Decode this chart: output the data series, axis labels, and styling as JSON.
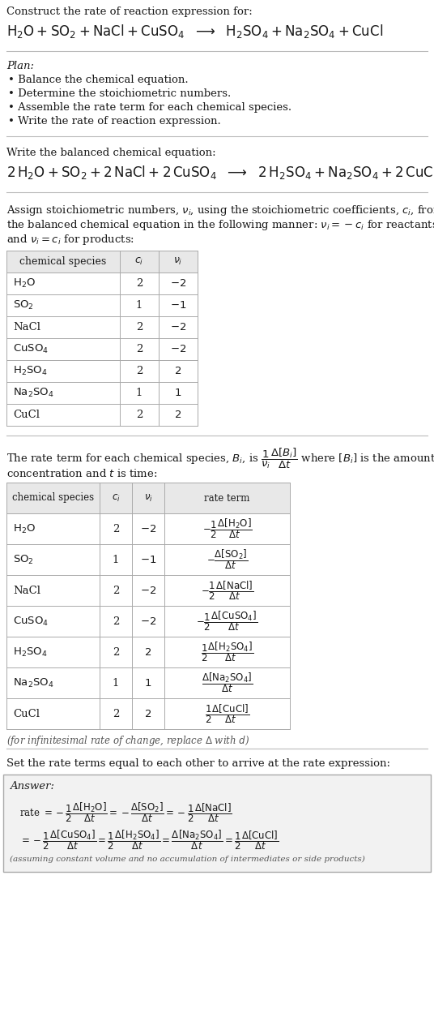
{
  "bg_color": "#ffffff",
  "text_color": "#1a1a1a",
  "title_line1": "Construct the rate of reaction expression for:",
  "plan_header": "Plan:",
  "plan_items": [
    "• Balance the chemical equation.",
    "• Determine the stoichiometric numbers.",
    "• Assemble the rate term for each chemical species.",
    "• Write the rate of reaction expression."
  ],
  "balanced_header": "Write the balanced chemical equation:",
  "stoich_lines": [
    "Assign stoichiometric numbers, $\\nu_i$, using the stoichiometric coefficients, $c_i$, from",
    "the balanced chemical equation in the following manner: $\\nu_i = -c_i$ for reactants",
    "and $\\nu_i = c_i$ for products:"
  ],
  "table1_species": [
    "$\\mathrm{H_2O}$",
    "$\\mathrm{SO_2}$",
    "NaCl",
    "$\\mathrm{CuSO_4}$",
    "$\\mathrm{H_2SO_4}$",
    "$\\mathrm{Na_2SO_4}$",
    "CuCl"
  ],
  "table1_ci": [
    "2",
    "1",
    "2",
    "2",
    "2",
    "1",
    "2"
  ],
  "table1_nu": [
    "$-2$",
    "$-1$",
    "$-2$",
    "$-2$",
    "$2$",
    "$1$",
    "$2$"
  ],
  "rate_line1": "The rate term for each chemical species, $B_i$, is $\\dfrac{1}{\\nu_i}\\dfrac{\\Delta[B_i]}{\\Delta t}$ where $[B_i]$ is the amount",
  "rate_line2": "concentration and $t$ is time:",
  "table2_species": [
    "$\\mathrm{H_2O}$",
    "$\\mathrm{SO_2}$",
    "NaCl",
    "$\\mathrm{CuSO_4}$",
    "$\\mathrm{H_2SO_4}$",
    "$\\mathrm{Na_2SO_4}$",
    "CuCl"
  ],
  "table2_ci": [
    "2",
    "1",
    "2",
    "2",
    "2",
    "1",
    "2"
  ],
  "table2_nu": [
    "$-2$",
    "$-1$",
    "$-2$",
    "$-2$",
    "$2$",
    "$1$",
    "$2$"
  ],
  "table2_rate": [
    "$-\\dfrac{1}{2}\\dfrac{\\Delta[\\mathrm{H_2O}]}{\\Delta t}$",
    "$-\\dfrac{\\Delta[\\mathrm{SO_2}]}{\\Delta t}$",
    "$-\\dfrac{1}{2}\\dfrac{\\Delta[\\mathrm{NaCl}]}{\\Delta t}$",
    "$-\\dfrac{1}{2}\\dfrac{\\Delta[\\mathrm{CuSO_4}]}{\\Delta t}$",
    "$\\dfrac{1}{2}\\dfrac{\\Delta[\\mathrm{H_2SO_4}]}{\\Delta t}$",
    "$\\dfrac{\\Delta[\\mathrm{Na_2SO_4}]}{\\Delta t}$",
    "$\\dfrac{1}{2}\\dfrac{\\Delta[\\mathrm{CuCl}]}{\\Delta t}$"
  ],
  "inf_note": "(for infinitesimal rate of change, replace $\\Delta$ with $d$)",
  "set_rate_text": "Set the rate terms equal to each other to arrive at the rate expression:",
  "ans_line1": "rate $= -\\dfrac{1}{2}\\dfrac{\\Delta[\\mathrm{H_2O}]}{\\Delta t} = -\\dfrac{\\Delta[\\mathrm{SO_2}]}{\\Delta t} = -\\dfrac{1}{2}\\dfrac{\\Delta[\\mathrm{NaCl}]}{\\Delta t}$",
  "ans_line2": "$= -\\dfrac{1}{2}\\dfrac{\\Delta[\\mathrm{CuSO_4}]}{\\Delta t} = \\dfrac{1}{2}\\dfrac{\\Delta[\\mathrm{H_2SO_4}]}{\\Delta t} = \\dfrac{\\Delta[\\mathrm{Na_2SO_4}]}{\\Delta t} = \\dfrac{1}{2}\\dfrac{\\Delta[\\mathrm{CuCl}]}{\\Delta t}$",
  "ans_footnote": "(assuming constant volume and no accumulation of intermediates or side products)",
  "font_serif": "DejaVu Serif"
}
